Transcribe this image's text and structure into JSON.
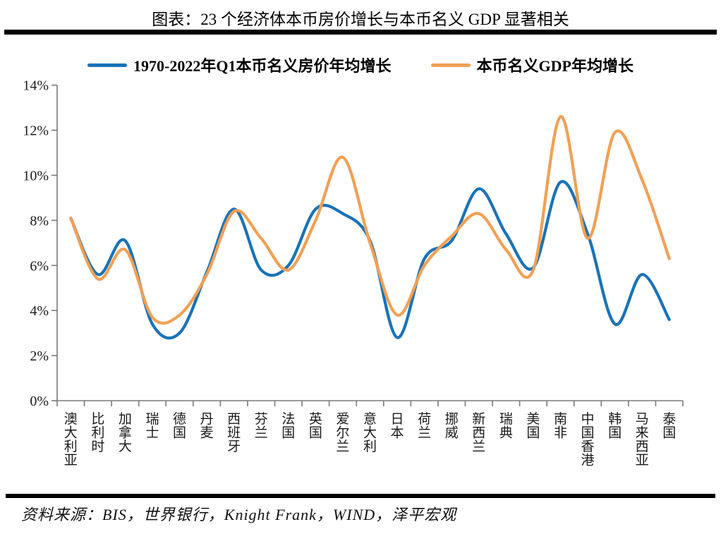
{
  "title": "图表：23 个经济体本币房价增长与本币名义 GDP 显著相关",
  "legend": [
    {
      "label": "1970-2022年Q1本币名义房价年均增长",
      "color": "#1973B8"
    },
    {
      "label": "本币名义GDP年均增长",
      "color": "#F2A055"
    }
  ],
  "footer": "资料来源：BIS，世界银行，Knight Frank，WIND，泽平宏观",
  "chart_data": {
    "type": "line",
    "smooth": true,
    "grid": false,
    "legend_position": "top",
    "title": "图表：23 个经济体本币房价增长与本币名义 GDP 显著相关",
    "xlabel": "",
    "ylabel": "",
    "ylim": [
      0,
      14
    ],
    "y_tick_labels": [
      "0%",
      "2%",
      "4%",
      "6%",
      "8%",
      "10%",
      "12%",
      "14%"
    ],
    "y_tick_values": [
      0,
      2,
      4,
      6,
      8,
      10,
      12,
      14
    ],
    "categories": [
      "澳大利亚",
      "比利时",
      "加拿大",
      "瑞士",
      "德国",
      "丹麦",
      "西班牙",
      "芬兰",
      "法国",
      "英国",
      "爱尔兰",
      "意大利",
      "日本",
      "荷兰",
      "挪威",
      "新西兰",
      "瑞典",
      "美国",
      "南非",
      "中国香港",
      "韩国",
      "马来西亚",
      "泰国"
    ],
    "series": [
      {
        "name": "1970-2022年Q1本币名义房价年均增长",
        "color": "#1973B8",
        "unit": "%",
        "values": [
          8.1,
          5.6,
          7.1,
          3.4,
          3.0,
          5.7,
          8.5,
          5.8,
          6.0,
          8.5,
          8.3,
          7.1,
          2.8,
          6.3,
          7.1,
          9.4,
          7.4,
          5.9,
          9.7,
          7.4,
          3.4,
          5.6,
          3.6
        ]
      },
      {
        "name": "本币名义GDP年均增长",
        "color": "#F2A055",
        "unit": "%",
        "values": [
          8.1,
          5.4,
          6.7,
          3.7,
          3.8,
          5.6,
          8.4,
          7.2,
          5.8,
          8.0,
          10.8,
          7.0,
          3.8,
          6.0,
          7.3,
          8.3,
          6.7,
          5.8,
          12.6,
          7.2,
          11.9,
          9.8,
          6.3
        ]
      }
    ]
  }
}
